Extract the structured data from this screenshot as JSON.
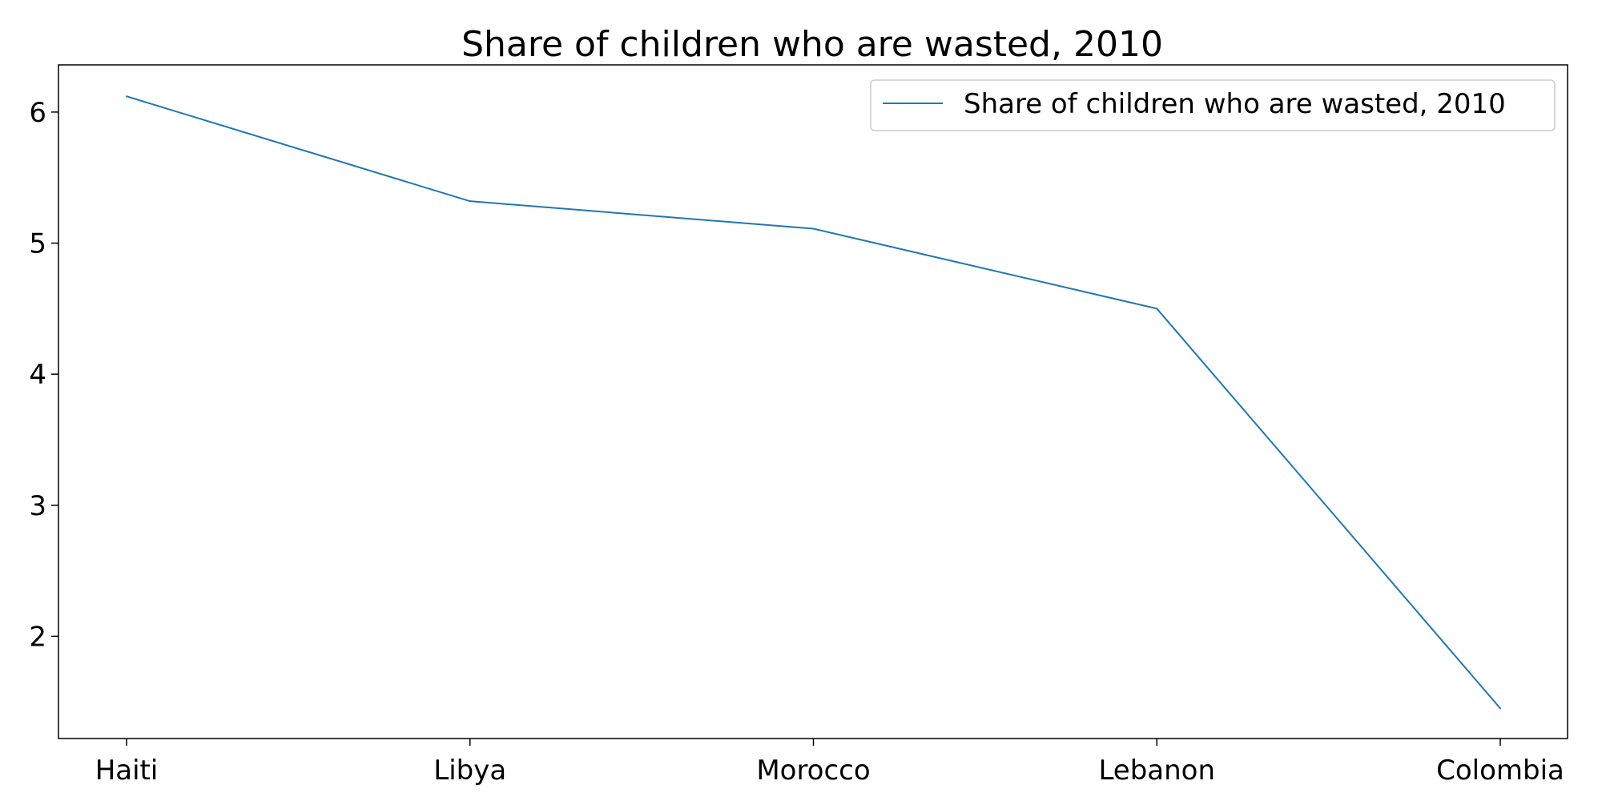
{
  "chart_data": {
    "type": "line",
    "title": "Share of children who are wasted, 2010",
    "xlabel": "",
    "ylabel": "",
    "categories": [
      "Haiti",
      "Libya",
      "Morocco",
      "Lebanon",
      "Colombia"
    ],
    "series": [
      {
        "name": "Share of children who are wasted, 2010",
        "values": [
          6.12,
          5.32,
          5.11,
          4.5,
          1.45
        ],
        "color": "#1f77b4"
      }
    ],
    "ylim": [
      1.22,
      6.36
    ],
    "yticks": [
      2,
      3,
      4,
      5,
      6
    ],
    "grid": false,
    "legend": "top-right"
  }
}
